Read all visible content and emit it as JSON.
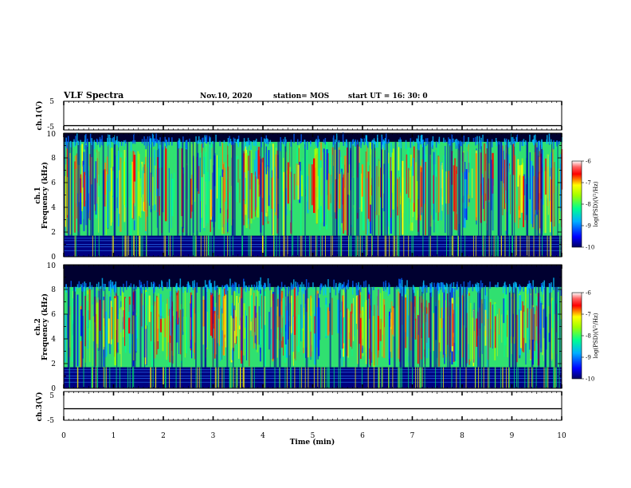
{
  "header": {
    "title": "VLF Spectra",
    "date": "Nov.10, 2020",
    "station": "station= MOS",
    "start": "start  UT =   16: 30: 0"
  },
  "chart_data": {
    "type": "heatmap",
    "xlabel": "Time  (min)",
    "xlim": [
      0,
      10
    ],
    "xticks": [
      "0",
      "1",
      "2",
      "3",
      "4",
      "5",
      "6",
      "7",
      "8",
      "9",
      "10"
    ],
    "panels": [
      {
        "id": "wave1",
        "type": "line",
        "ylabel": "ch.1(V)",
        "ylim": [
          -5,
          5
        ],
        "yticks": [
          "5",
          "-5"
        ],
        "level": -3.5
      },
      {
        "id": "spec1",
        "type": "heatmap",
        "ylabel1": "ch.1",
        "ylabel2": "Frequency  (kHz)",
        "ylim": [
          0,
          10
        ],
        "yticks": [
          "0",
          "2",
          "4",
          "6",
          "8",
          "10"
        ],
        "top_band_khz": 9.3
      },
      {
        "id": "spec2",
        "type": "heatmap",
        "ylabel1": "ch.2",
        "ylabel2": "Frequency  (kHz)",
        "ylim": [
          0,
          10
        ],
        "yticks": [
          "0",
          "2",
          "4",
          "6",
          "8",
          "10"
        ],
        "top_band_khz": 8.2
      },
      {
        "id": "wave3",
        "type": "line",
        "ylabel": "ch.3(V)",
        "ylim": [
          -5,
          5
        ],
        "yticks": [
          "5",
          "-5"
        ],
        "level": -1.0
      }
    ],
    "colorbar": {
      "label": "log(PSD)(V²/Hz)",
      "range": [
        -10,
        -6
      ],
      "ticks": [
        "-6",
        "-7",
        "-8",
        "-9",
        "-10"
      ],
      "colors": [
        "#000060",
        "#0000ff",
        "#00b0ff",
        "#00ff90",
        "#a0ff00",
        "#ffff00",
        "#ff8000",
        "#ff0000",
        "#ffffff"
      ]
    }
  }
}
